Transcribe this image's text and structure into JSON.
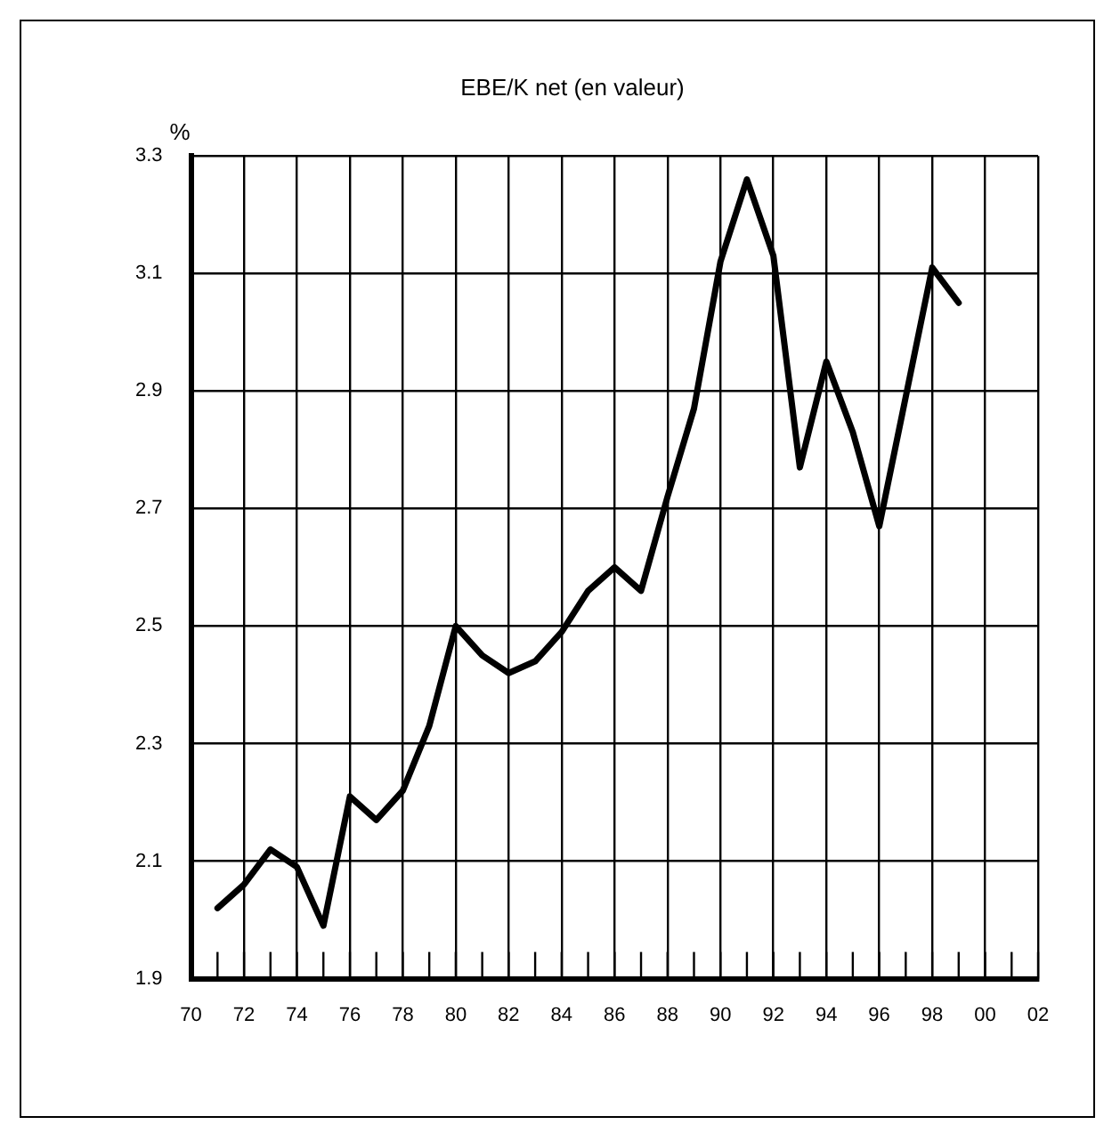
{
  "chart_data": {
    "type": "line",
    "title": "EBE/K net (en valeur)",
    "ylabel": "%",
    "x": [
      1971,
      1972,
      1973,
      1974,
      1975,
      1976,
      1977,
      1978,
      1979,
      1980,
      1981,
      1982,
      1983,
      1984,
      1985,
      1986,
      1987,
      1988,
      1989,
      1990,
      1991,
      1992,
      1993,
      1994,
      1995,
      1996,
      1997,
      1998,
      1999
    ],
    "series": [
      {
        "color": "#000000",
        "values": [
          2.02,
          2.06,
          2.12,
          2.09,
          1.99,
          2.21,
          2.17,
          2.22,
          2.33,
          2.5,
          2.45,
          2.42,
          2.44,
          2.49,
          2.56,
          2.6,
          2.56,
          2.72,
          2.87,
          3.12,
          3.26,
          3.13,
          2.77,
          2.95,
          2.83,
          2.67,
          2.89,
          3.11,
          3.05
        ]
      }
    ],
    "xlim": [
      1970,
      2002
    ],
    "xticks": [
      {
        "value": 1970,
        "label": "70"
      },
      {
        "value": 1971,
        "label": null
      },
      {
        "value": 1972,
        "label": "72"
      },
      {
        "value": 1973,
        "label": null
      },
      {
        "value": 1974,
        "label": "74"
      },
      {
        "value": 1975,
        "label": null
      },
      {
        "value": 1976,
        "label": "76"
      },
      {
        "value": 1977,
        "label": null
      },
      {
        "value": 1978,
        "label": "78"
      },
      {
        "value": 1979,
        "label": null
      },
      {
        "value": 1980,
        "label": "80"
      },
      {
        "value": 1981,
        "label": null
      },
      {
        "value": 1982,
        "label": "82"
      },
      {
        "value": 1983,
        "label": null
      },
      {
        "value": 1984,
        "label": "84"
      },
      {
        "value": 1985,
        "label": null
      },
      {
        "value": 1986,
        "label": "86"
      },
      {
        "value": 1987,
        "label": null
      },
      {
        "value": 1988,
        "label": "88"
      },
      {
        "value": 1989,
        "label": null
      },
      {
        "value": 1990,
        "label": "90"
      },
      {
        "value": 1991,
        "label": null
      },
      {
        "value": 1992,
        "label": "92"
      },
      {
        "value": 1993,
        "label": null
      },
      {
        "value": 1994,
        "label": "94"
      },
      {
        "value": 1995,
        "label": null
      },
      {
        "value": 1996,
        "label": "96"
      },
      {
        "value": 1997,
        "label": null
      },
      {
        "value": 1998,
        "label": "98"
      },
      {
        "value": 1999,
        "label": null
      },
      {
        "value": 2000,
        "label": "00"
      },
      {
        "value": 2001,
        "label": null
      },
      {
        "value": 2002,
        "label": "02"
      }
    ],
    "ylim": [
      1.9,
      3.3
    ],
    "yticks": [
      1.9,
      2.1,
      2.3,
      2.5,
      2.7,
      2.9,
      3.1,
      3.3
    ],
    "grid": true,
    "marker": "none",
    "line_style": "solid"
  }
}
